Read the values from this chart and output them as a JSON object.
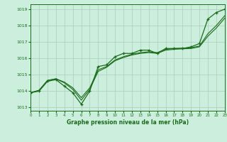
{
  "title": "Graphe pression niveau de la mer (hPa)",
  "bg_color": "#cceedd",
  "grid_color": "#aaccbb",
  "line_color": "#1a6b1a",
  "text_color": "#1a6b1a",
  "xlim": [
    0,
    23
  ],
  "ylim": [
    1012.8,
    1019.3
  ],
  "yticks": [
    1013,
    1014,
    1015,
    1016,
    1017,
    1018,
    1019
  ],
  "xticks": [
    0,
    1,
    2,
    3,
    4,
    5,
    6,
    7,
    8,
    9,
    10,
    11,
    12,
    13,
    14,
    15,
    16,
    17,
    18,
    19,
    20,
    21,
    22,
    23
  ],
  "series1_y": [
    1013.9,
    1014.05,
    1014.65,
    1014.75,
    1014.5,
    1014.1,
    1013.45,
    1014.1,
    1015.2,
    1015.45,
    1015.85,
    1016.05,
    1016.2,
    1016.3,
    1016.35,
    1016.3,
    1016.5,
    1016.55,
    1016.58,
    1016.6,
    1016.7,
    1017.35,
    1017.85,
    1018.45
  ],
  "series2_y": [
    1013.9,
    1014.05,
    1014.65,
    1014.75,
    1014.55,
    1014.2,
    1013.6,
    1014.2,
    1015.3,
    1015.5,
    1015.9,
    1016.1,
    1016.25,
    1016.35,
    1016.4,
    1016.35,
    1016.55,
    1016.6,
    1016.62,
    1016.65,
    1016.75,
    1017.5,
    1018.0,
    1018.6
  ],
  "series3_y": [
    1013.9,
    1014.0,
    1014.6,
    1014.7,
    1014.3,
    1013.9,
    1013.2,
    1014.0,
    1015.5,
    1015.6,
    1016.1,
    1016.3,
    1016.3,
    1016.5,
    1016.5,
    1016.3,
    1016.6,
    1016.6,
    1016.6,
    1016.7,
    1016.9,
    1018.4,
    1018.8,
    1019.0
  ]
}
